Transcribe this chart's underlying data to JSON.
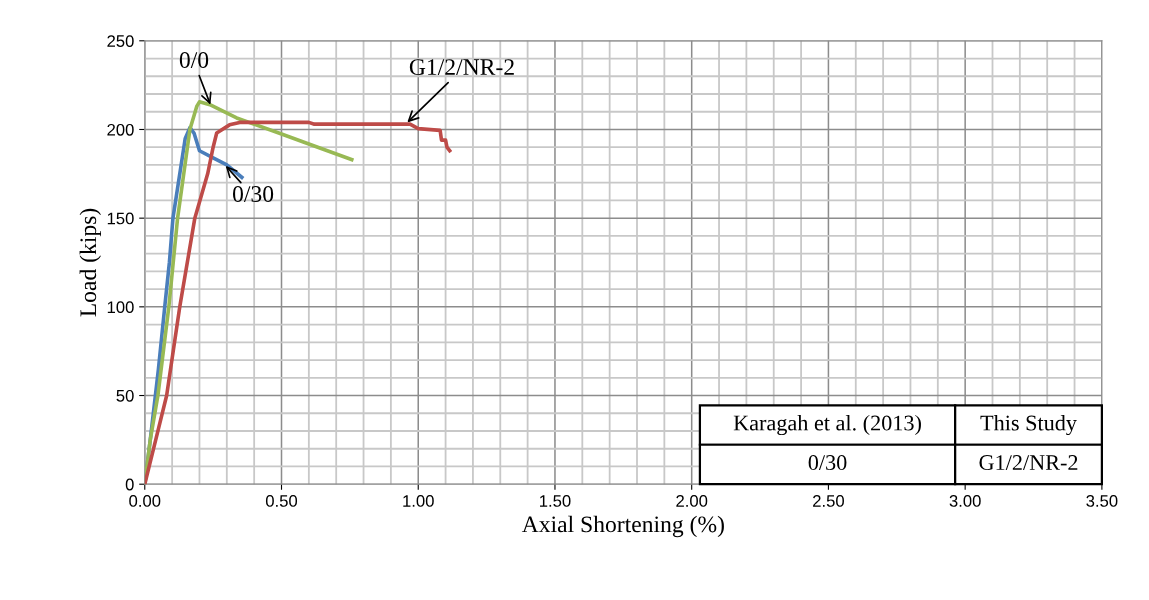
{
  "chart_data": {
    "type": "line",
    "xlabel": "Axial Shortening (%)",
    "ylabel": "Load (kips)",
    "xlim": [
      0,
      3.5
    ],
    "ylim": [
      0,
      250
    ],
    "xticks": [
      {
        "value": 0,
        "label": "0.00"
      },
      {
        "value": 0.5,
        "label": "0.50"
      },
      {
        "value": 1,
        "label": "1.00"
      },
      {
        "value": 1.5,
        "label": "1.50"
      },
      {
        "value": 2,
        "label": "2.00"
      },
      {
        "value": 2.5,
        "label": "2.50"
      },
      {
        "value": 3,
        "label": "3.00"
      },
      {
        "value": 3.5,
        "label": "3.50"
      }
    ],
    "yticks": [
      0,
      50,
      100,
      150,
      200,
      250
    ],
    "grid": true,
    "marker": "none",
    "line_style": "solid",
    "series": [
      {
        "color": "#4a7ebb",
        "x": [
          0,
          0.02,
          0.05,
          0.073,
          0.09,
          0.103,
          0.128,
          0.148,
          0.165,
          0.18,
          0.2,
          0.25,
          0.3,
          0.355
        ],
        "values": [
          0,
          25,
          65,
          100,
          125,
          150,
          175,
          195,
          201,
          198,
          188,
          184,
          180,
          173
        ]
      },
      {
        "color": "#98b954",
        "x": [
          0,
          0.02,
          0.048,
          0.088,
          0.12,
          0.165,
          0.19,
          0.2,
          0.238,
          0.336,
          0.49,
          0.615,
          0.757
        ],
        "values": [
          0,
          25,
          50,
          100,
          150,
          200,
          213,
          215.6,
          214,
          206.5,
          198,
          191,
          183
        ]
      },
      {
        "color": "#be4b48",
        "x": [
          0,
          0.04,
          0.08,
          0.128,
          0.183,
          0.23,
          0.25,
          0.263,
          0.31,
          0.347,
          0.6,
          0.62,
          0.97,
          1.0,
          1.08,
          1.085,
          1.1,
          1.105,
          1.115
        ],
        "values": [
          0,
          25,
          50,
          100,
          150,
          175,
          190,
          198,
          202.6,
          204,
          204,
          203,
          203,
          200.5,
          199.5,
          194,
          194,
          190,
          188
        ]
      }
    ],
    "annotations": [
      {
        "text": "0/0",
        "x": 0.24,
        "y": 214
      },
      {
        "text": "0/30",
        "x": 0.296,
        "y": 179.5
      },
      {
        "text": "G1/2/NR-2",
        "x": 0.96,
        "y": 204
      },
      "Karagah et al. (2013)",
      "This Study",
      "0/30",
      "G1/2/NR-2"
    ]
  }
}
